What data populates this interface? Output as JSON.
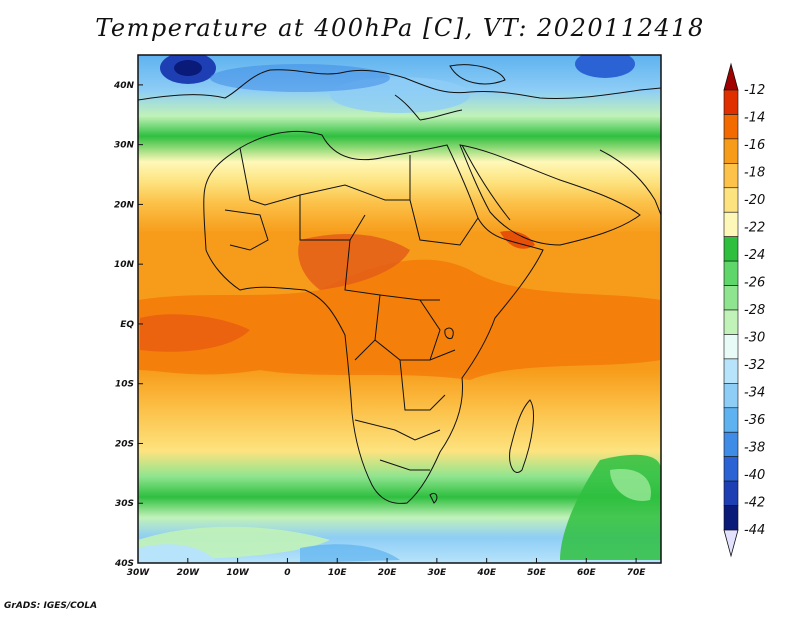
{
  "title": "Temperature at 400hPa [C], VT: 2020112418",
  "footer": "GrADS: IGES/COLA",
  "map": {
    "projection": "latlon",
    "lon_range": [
      -30,
      75
    ],
    "lat_range": [
      -40,
      45
    ],
    "lon_ticks": [
      "30W",
      "20W",
      "10W",
      "0",
      "10E",
      "20E",
      "30E",
      "40E",
      "50E",
      "60E",
      "70E"
    ],
    "lat_ticks": [
      "40N",
      "30N",
      "20N",
      "10N",
      "EQ",
      "10S",
      "20S",
      "30S",
      "40S"
    ],
    "region": "Africa"
  },
  "colorbar": {
    "labels": [
      "-12",
      "-14",
      "-16",
      "-18",
      "-20",
      "-22",
      "-24",
      "-26",
      "-28",
      "-30",
      "-32",
      "-34",
      "-36",
      "-38",
      "-40",
      "-42",
      "-44"
    ],
    "colors": [
      "#a00000",
      "#e03000",
      "#f36a00",
      "#f79c1a",
      "#fcc24a",
      "#fde37f",
      "#fef8b8",
      "#2fbf3f",
      "#5fd66a",
      "#8fe48f",
      "#c1f2b8",
      "#e9fbf6",
      "#b7e4fa",
      "#8ecdf6",
      "#5eb2ef",
      "#3f8ce6",
      "#2b63d4",
      "#1e3fb4",
      "#0a1a78",
      "#e2e2ff"
    ]
  },
  "chart_data": {
    "type": "heatmap",
    "title": "Temperature at 400hPa [C], VT: 2020112418",
    "variable": "Temperature at 400hPa",
    "units": "C",
    "valid_time": "2020112418",
    "xlabel": "",
    "ylabel": "",
    "x_ticks": [
      "30W",
      "20W",
      "10W",
      "0",
      "10E",
      "20E",
      "30E",
      "40E",
      "50E",
      "60E",
      "70E"
    ],
    "y_ticks": [
      "40N",
      "30N",
      "20N",
      "10N",
      "EQ",
      "10S",
      "20S",
      "30S",
      "40S"
    ],
    "xlim": [
      -30,
      75
    ],
    "ylim": [
      -40,
      45
    ],
    "colorbar_levels": [
      -12,
      -14,
      -16,
      -18,
      -20,
      -22,
      -24,
      -26,
      -28,
      -30,
      -32,
      -34,
      -36,
      -38,
      -40,
      -42,
      -44
    ],
    "temperature_by_latitude": [
      {
        "lat": 45,
        "value": -40
      },
      {
        "lat": 40,
        "value": -36
      },
      {
        "lat": 35,
        "value": -31
      },
      {
        "lat": 30,
        "value": -26
      },
      {
        "lat": 25,
        "value": -21
      },
      {
        "lat": 20,
        "value": -19
      },
      {
        "lat": 10,
        "value": -16
      },
      {
        "lat": 0,
        "value": -15
      },
      {
        "lat": -10,
        "value": -15
      },
      {
        "lat": -20,
        "value": -17
      },
      {
        "lat": -30,
        "value": -22
      },
      {
        "lat": -35,
        "value": -28
      },
      {
        "lat": -40,
        "value": -32
      }
    ],
    "features": [
      {
        "name": "cold core",
        "lon": -20,
        "lat": 41,
        "value": -42
      },
      {
        "name": "cold core",
        "lon": 68,
        "lat": 42,
        "value": -38
      },
      {
        "name": "warm maximum",
        "lon": 22,
        "lat": 10,
        "value": -12
      },
      {
        "name": "warm maximum",
        "lon": -23,
        "lat": -2,
        "value": -12
      }
    ]
  }
}
